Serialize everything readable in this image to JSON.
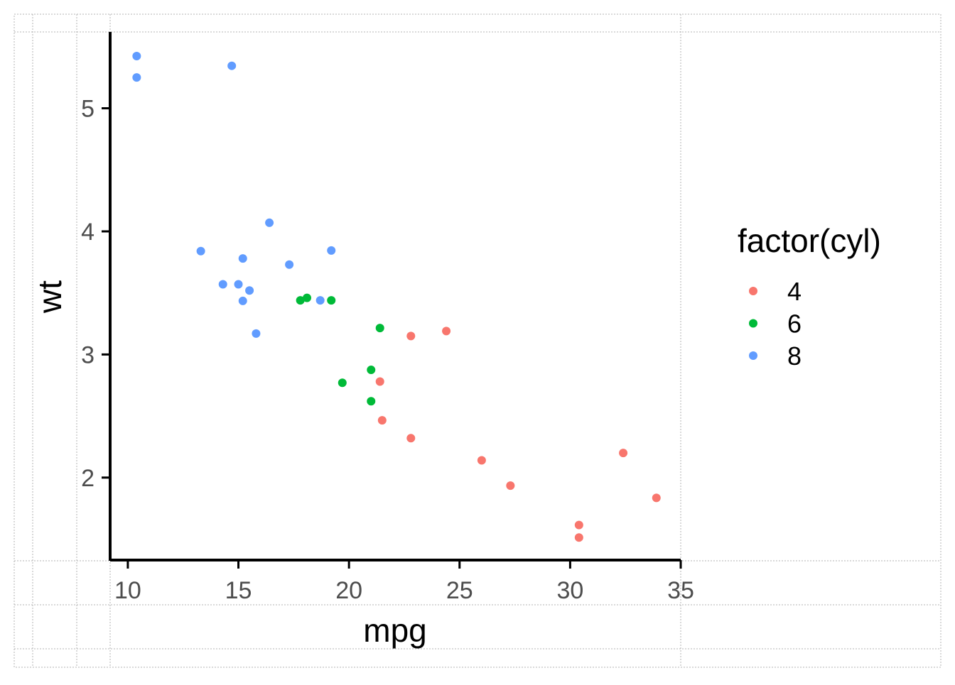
{
  "chart_data": {
    "type": "scatter",
    "xlabel": "mpg",
    "ylabel": "wt",
    "xlim": [
      9.2,
      35.0
    ],
    "ylim": [
      1.33,
      5.62
    ],
    "x_ticks": [
      10,
      15,
      20,
      25,
      30,
      35
    ],
    "y_ticks": [
      2,
      3,
      4,
      5
    ],
    "grid": false,
    "legend": {
      "title": "factor(cyl)",
      "position": "right"
    },
    "series": [
      {
        "name": "4",
        "color": "#F8766D",
        "points": [
          [
            22.8,
            2.32
          ],
          [
            24.4,
            3.19
          ],
          [
            22.8,
            3.15
          ],
          [
            32.4,
            2.2
          ],
          [
            30.4,
            1.615
          ],
          [
            33.9,
            1.835
          ],
          [
            21.5,
            2.465
          ],
          [
            27.3,
            1.935
          ],
          [
            26.0,
            2.14
          ],
          [
            30.4,
            1.513
          ],
          [
            21.4,
            2.78
          ]
        ]
      },
      {
        "name": "6",
        "color": "#00BA38",
        "points": [
          [
            21.0,
            2.62
          ],
          [
            21.0,
            2.875
          ],
          [
            21.4,
            3.215
          ],
          [
            18.1,
            3.46
          ],
          [
            19.2,
            3.44
          ],
          [
            17.8,
            3.44
          ],
          [
            19.7,
            2.77
          ]
        ]
      },
      {
        "name": "8",
        "color": "#619CFF",
        "points": [
          [
            18.7,
            3.44
          ],
          [
            14.3,
            3.57
          ],
          [
            16.4,
            4.07
          ],
          [
            17.3,
            3.73
          ],
          [
            15.2,
            3.78
          ],
          [
            10.4,
            5.25
          ],
          [
            10.4,
            5.424
          ],
          [
            14.7,
            5.345
          ],
          [
            15.5,
            3.52
          ],
          [
            15.2,
            3.435
          ],
          [
            13.3,
            3.84
          ],
          [
            19.2,
            3.845
          ],
          [
            15.8,
            3.17
          ],
          [
            15.0,
            3.57
          ]
        ]
      }
    ]
  }
}
